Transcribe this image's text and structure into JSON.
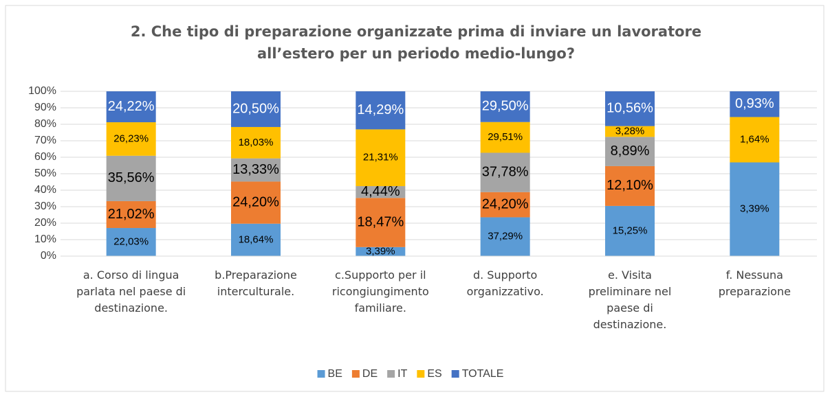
{
  "chart_data": {
    "type": "bar",
    "stacking": "percent",
    "title": "2. Che tipo di preparazione organizzate prima di inviare un lavoratore all’estero per un periodo medio-lungo?",
    "categories": [
      "a.   Corso di lingua parlata nel paese di destinazione.",
      "b.Preparazione interculturale.",
      "c.Supporto per il ricongiungimento familiare.",
      "d.  Supporto organizzativo.",
      "e.  Visita preliminare nel paese di destinazione.",
      "f.  Nessuna preparazione"
    ],
    "series": [
      {
        "name": "BE",
        "color": "#5b9bd5",
        "label_color": "#000000",
        "values": [
          22.03,
          18.64,
          3.39,
          37.29,
          15.25,
          3.39
        ],
        "value_labels": [
          "22,03%",
          "18,64%",
          "3,39%",
          "37,29%",
          "15,25%",
          "3,39%"
        ]
      },
      {
        "name": "DE",
        "color": "#ed7d31",
        "label_color": "#000000",
        "values": [
          21.02,
          24.2,
          18.47,
          24.2,
          12.1,
          null
        ],
        "value_labels": [
          "21,02%",
          "24,20%",
          "18,47%",
          "24,20%",
          "12,10%",
          null
        ]
      },
      {
        "name": "IT",
        "color": "#a5a5a5",
        "label_color": "#000000",
        "values": [
          35.56,
          13.33,
          4.44,
          37.78,
          8.89,
          null
        ],
        "value_labels": [
          "35,56%",
          "13,33%",
          "4,44%",
          "37,78%",
          "8,89%",
          null
        ]
      },
      {
        "name": "ES",
        "color": "#ffc000",
        "label_color": "#000000",
        "values": [
          26.23,
          18.03,
          21.31,
          29.51,
          3.28,
          1.64
        ],
        "value_labels": [
          "26,23%",
          "18,03%",
          "21,31%",
          "29,51%",
          "3,28%",
          "1,64%"
        ]
      },
      {
        "name": "TOTALE",
        "color": "#4472c4",
        "label_color": "#ffffff",
        "values": [
          24.22,
          20.5,
          14.29,
          29.5,
          10.56,
          0.93
        ],
        "value_labels": [
          "24,22%",
          "20,50%",
          "14,29%",
          "29,50%",
          "10,56%",
          "0,93%"
        ]
      }
    ],
    "ylim": [
      0,
      100
    ],
    "yticks": [
      {
        "value": 0,
        "label": "0%"
      },
      {
        "value": 10,
        "label": "10%"
      },
      {
        "value": 20,
        "label": "20%"
      },
      {
        "value": 30,
        "label": "30%"
      },
      {
        "value": 40,
        "label": "40%"
      },
      {
        "value": 50,
        "label": "50%"
      },
      {
        "value": 60,
        "label": "60%"
      },
      {
        "value": 70,
        "label": "70%"
      },
      {
        "value": 80,
        "label": "80%"
      },
      {
        "value": 90,
        "label": "90%"
      },
      {
        "value": 100,
        "label": "100%"
      }
    ],
    "grid": true,
    "legend": "bottom"
  }
}
